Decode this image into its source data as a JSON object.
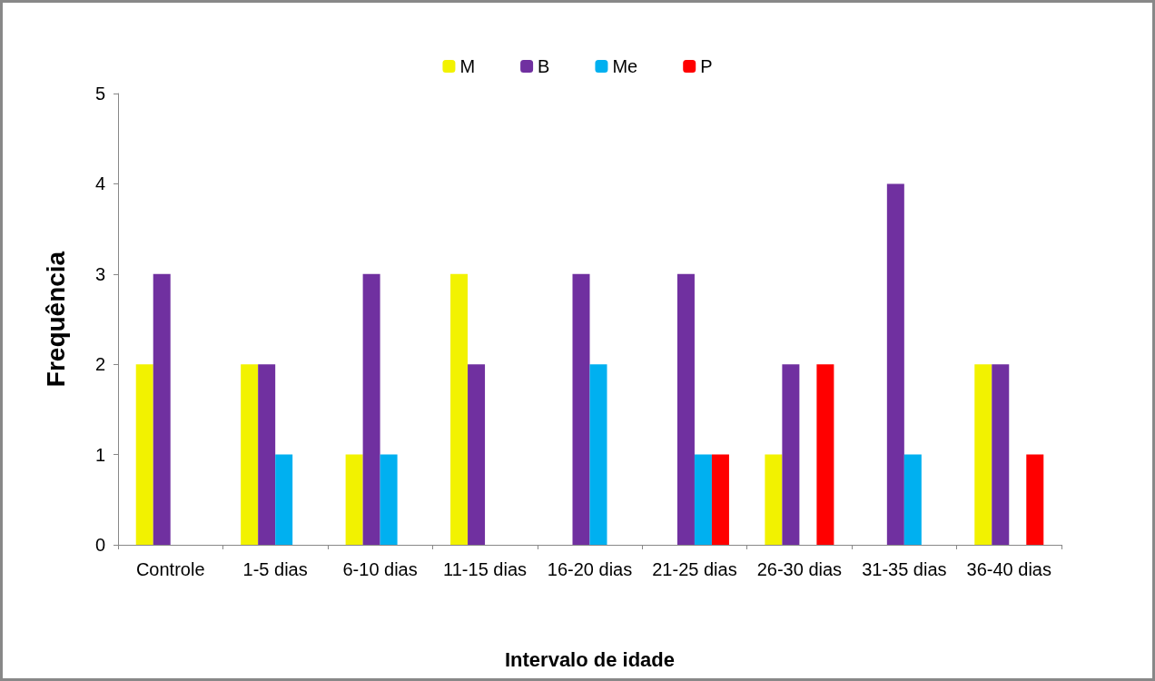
{
  "chart_data": {
    "type": "bar",
    "xlabel": "Intervalo de idade",
    "ylabel": "Frequência",
    "categories": [
      "Controle",
      "1-5 dias",
      "6-10 dias",
      "11-15 dias",
      "16-20 dias",
      "21-25 dias",
      "26-30 dias",
      "31-35 dias",
      "36-40 dias"
    ],
    "series": [
      {
        "name": "M",
        "color": "#f2f200",
        "values": [
          2,
          2,
          1,
          3,
          0,
          0,
          1,
          0,
          2
        ]
      },
      {
        "name": "B",
        "color": "#7030a0",
        "values": [
          3,
          2,
          3,
          2,
          3,
          3,
          2,
          4,
          2
        ]
      },
      {
        "name": "Me",
        "color": "#00b0f0",
        "values": [
          0,
          1,
          1,
          0,
          2,
          1,
          0,
          1,
          0
        ]
      },
      {
        "name": "P",
        "color": "#ff0000",
        "values": [
          0,
          0,
          0,
          0,
          0,
          1,
          2,
          0,
          1
        ]
      }
    ],
    "ylim": [
      0,
      5
    ],
    "yticks": [
      0,
      1,
      2,
      3,
      4,
      5
    ],
    "grid": false,
    "legend": "top"
  }
}
